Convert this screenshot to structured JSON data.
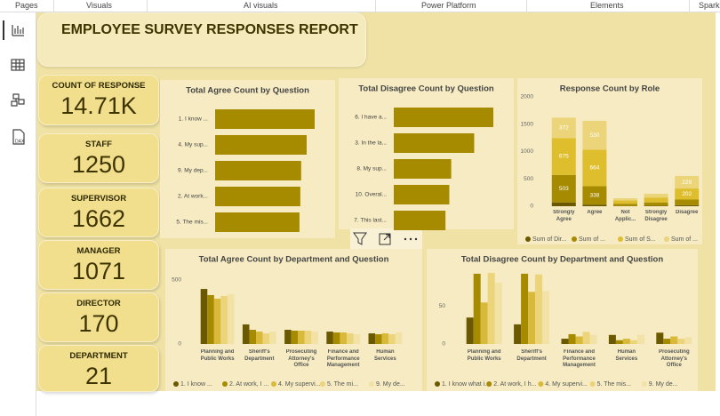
{
  "ribbon_tabs": [
    "Pages",
    "Visuals",
    "AI visuals",
    "Power Platform",
    "Elements",
    "Spark"
  ],
  "sidebar": {
    "dax_icon_label": "DAX"
  },
  "report_title": "EMPLOYEE SURVEY RESPONSES REPORT",
  "cards": [
    {
      "label": "COUNT OF RESPONSE",
      "value": "14.71K"
    },
    {
      "label": "STAFF",
      "value": 1250
    },
    {
      "label": "SUPERVISOR",
      "value": 1662
    },
    {
      "label": "MANAGER",
      "value": 1071
    },
    {
      "label": "DIRECTOR",
      "value": 170
    },
    {
      "label": "DEPARTMENT",
      "value": 21
    }
  ],
  "chart_data": [
    {
      "type": "hbar",
      "title": "Total Agree Count by Question",
      "categories": [
        "1. I know ...",
        "4. My sup...",
        "9. My dep...",
        "2. At work...",
        "5. The mis..."
      ],
      "values": [
        1180,
        1085,
        1020,
        1010,
        1000
      ],
      "color": "#a68b00"
    },
    {
      "type": "hbar",
      "title": "Total Disagree Count by Question",
      "categories": [
        "6. I have a...",
        "3. In the la...",
        "8. My sup...",
        "10. Overal...",
        "7. This last..."
      ],
      "values": [
        260,
        210,
        150,
        145,
        135
      ],
      "color": "#a68b00"
    },
    {
      "type": "stacked_column",
      "title": "Response Count by Role",
      "categories": [
        "Strongly Agree",
        "Agree",
        "Not Applic...",
        "Strongly Disagree",
        "Disagree"
      ],
      "series": [
        {
          "name": "Sum of Dir...",
          "color": "#6b5900",
          "values": [
            70,
            30,
            5,
            10,
            20
          ]
        },
        {
          "name": "Sum of ...",
          "color": "#a68b00",
          "values": [
            503,
            338,
            40,
            60,
            102
          ]
        },
        {
          "name": "Sum of S...",
          "color": "#dfbe2e",
          "values": [
            675,
            664,
            60,
            90,
            202
          ]
        },
        {
          "name": "Sum of ...",
          "color": "#ebd47a",
          "values": [
            372,
            530,
            41,
            68,
            229
          ]
        }
      ],
      "ylim": [
        0,
        2000
      ],
      "yticks": [
        0,
        500,
        1000,
        1500,
        2000
      ],
      "grid": false
    },
    {
      "type": "grouped_column",
      "title": "Total Agree Count by Department and Question",
      "categories": [
        "Planning and Public Works",
        "Sheriff's Department",
        "Prosecuting Attorney's Office",
        "Finance and Performance Management",
        "Human Services"
      ],
      "series": [
        {
          "name": "1. I know ...",
          "color": "#6b5900",
          "values": [
            430,
            153,
            111,
            97,
            83
          ]
        },
        {
          "name": "2. At work, I ...",
          "color": "#a68b00",
          "values": [
            382,
            111,
            104,
            90,
            76
          ]
        },
        {
          "name": "4. My supervi...",
          "color": "#d9b93a",
          "values": [
            354,
            97,
            104,
            90,
            83
          ]
        },
        {
          "name": "5. The mi...",
          "color": "#ebd47a",
          "values": [
            375,
            83,
            104,
            83,
            76
          ]
        },
        {
          "name": "9. My de...",
          "color": "#f2e2a6",
          "values": [
            389,
            97,
            97,
            76,
            90
          ]
        }
      ],
      "ylim": [
        0,
        590
      ],
      "yticks": [
        0,
        500
      ],
      "grid": false
    },
    {
      "type": "grouped_column",
      "title": "Total Disagree Count by Department and Question",
      "categories": [
        "Planning and Public Works",
        "Sheriff's Department",
        "Finance and Performance Management",
        "Human Services",
        "Prosecuting Attorney's Office"
      ],
      "series": [
        {
          "name": "1. I know what i...",
          "color": "#6b5900",
          "values": [
            35,
            26,
            7,
            12,
            15
          ]
        },
        {
          "name": "2. At work, I h...",
          "color": "#a68b00",
          "values": [
            93,
            93,
            13,
            5,
            7
          ]
        },
        {
          "name": "4. My supervi...",
          "color": "#d9b93a",
          "values": [
            55,
            69,
            10,
            7,
            10
          ]
        },
        {
          "name": "5. The mis...",
          "color": "#ebd47a",
          "values": [
            94,
            92,
            16,
            5,
            7
          ]
        },
        {
          "name": "9. My de...",
          "color": "#f2e2a6",
          "values": [
            81,
            70,
            12,
            12,
            9
          ]
        }
      ],
      "ylim": [
        0,
        100
      ],
      "yticks": [
        0,
        50
      ],
      "grid": false
    }
  ]
}
